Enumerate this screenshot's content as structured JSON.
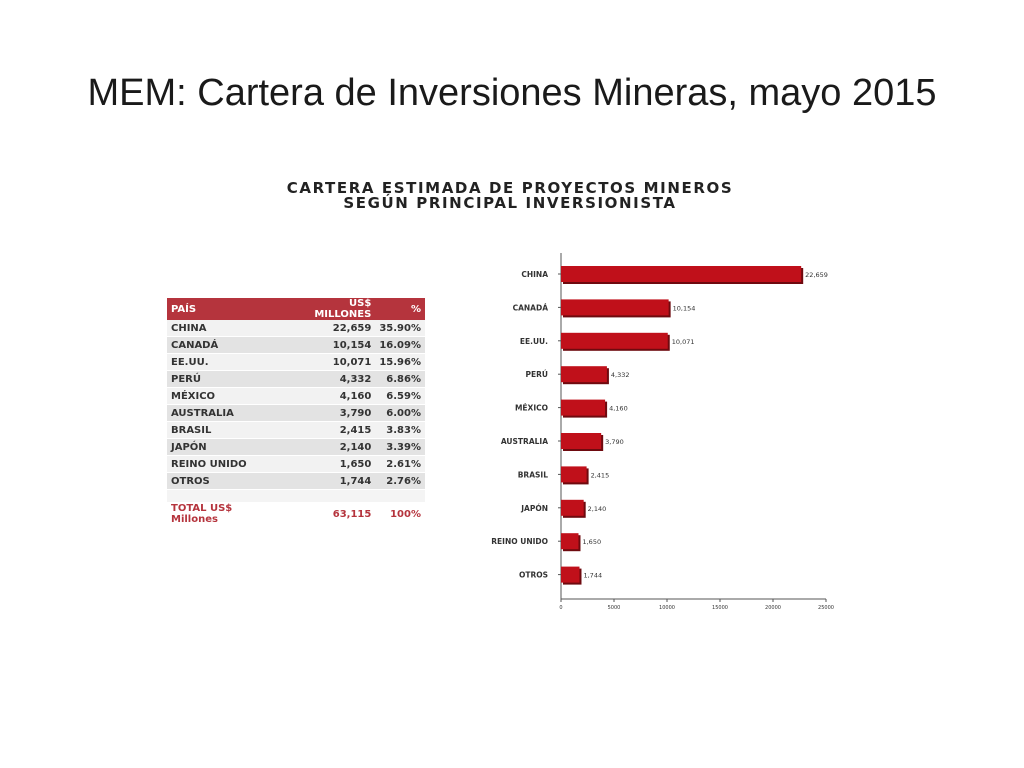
{
  "slide": {
    "title": "MEM: Cartera de Inversiones Mineras, mayo 2015"
  },
  "chart_heading": {
    "line1": "CARTERA ESTIMADA DE PROYECTOS MINEROS",
    "line2": "SEGÚN PRINCIPAL INVERSIONISTA"
  },
  "table": {
    "headers": [
      "PAÍS",
      "US$ MILLONES",
      "%"
    ],
    "rows": [
      [
        "CHINA",
        "22,659",
        "35.90%"
      ],
      [
        "CANADÁ",
        "10,154",
        "16.09%"
      ],
      [
        "EE.UU.",
        "10,071",
        "15.96%"
      ],
      [
        "PERÚ",
        "4,332",
        "6.86%"
      ],
      [
        "MÉXICO",
        "4,160",
        "6.59%"
      ],
      [
        "AUSTRALIA",
        "3,790",
        "6.00%"
      ],
      [
        "BRASIL",
        "2,415",
        "3.83%"
      ],
      [
        "JAPÓN",
        "2,140",
        "3.39%"
      ],
      [
        "REINO UNIDO",
        "1,650",
        "2.61%"
      ],
      [
        "OTROS",
        "1,744",
        "2.76%"
      ]
    ],
    "total": [
      "TOTAL US$ Millones",
      "63,115",
      "100%"
    ]
  },
  "colors": {
    "bar": "#c0101a",
    "bar_shadow": "#6e0a0f",
    "table_header": "#b5343d",
    "total_text": "#b5343d"
  },
  "chart_data": {
    "type": "bar",
    "orientation": "horizontal",
    "title": "CARTERA ESTIMADA DE PROYECTOS MINEROS SEGÚN PRINCIPAL INVERSIONISTA",
    "categories": [
      "CHINA",
      "CANADÁ",
      "EE.UU.",
      "PERÚ",
      "MÉXICO",
      "AUSTRALIA",
      "BRASIL",
      "JAPÓN",
      "REINO UNIDO",
      "OTROS"
    ],
    "values": [
      22659,
      10154,
      10071,
      4332,
      4160,
      3790,
      2415,
      2140,
      1650,
      1744
    ],
    "value_labels": [
      "22,659",
      "10,154",
      "10,071",
      "4,332",
      "4,160",
      "3,790",
      "2,415",
      "2,140",
      "1,650",
      "1,744"
    ],
    "xlim": [
      0,
      25000
    ],
    "x_ticks": [
      0,
      5000,
      10000,
      15000,
      20000,
      25000
    ],
    "x_tick_labels": [
      "0",
      "5000",
      "10000",
      "15000",
      "20000",
      "25000"
    ],
    "xlabel": "",
    "ylabel": "",
    "grid": false,
    "legend": "none"
  }
}
